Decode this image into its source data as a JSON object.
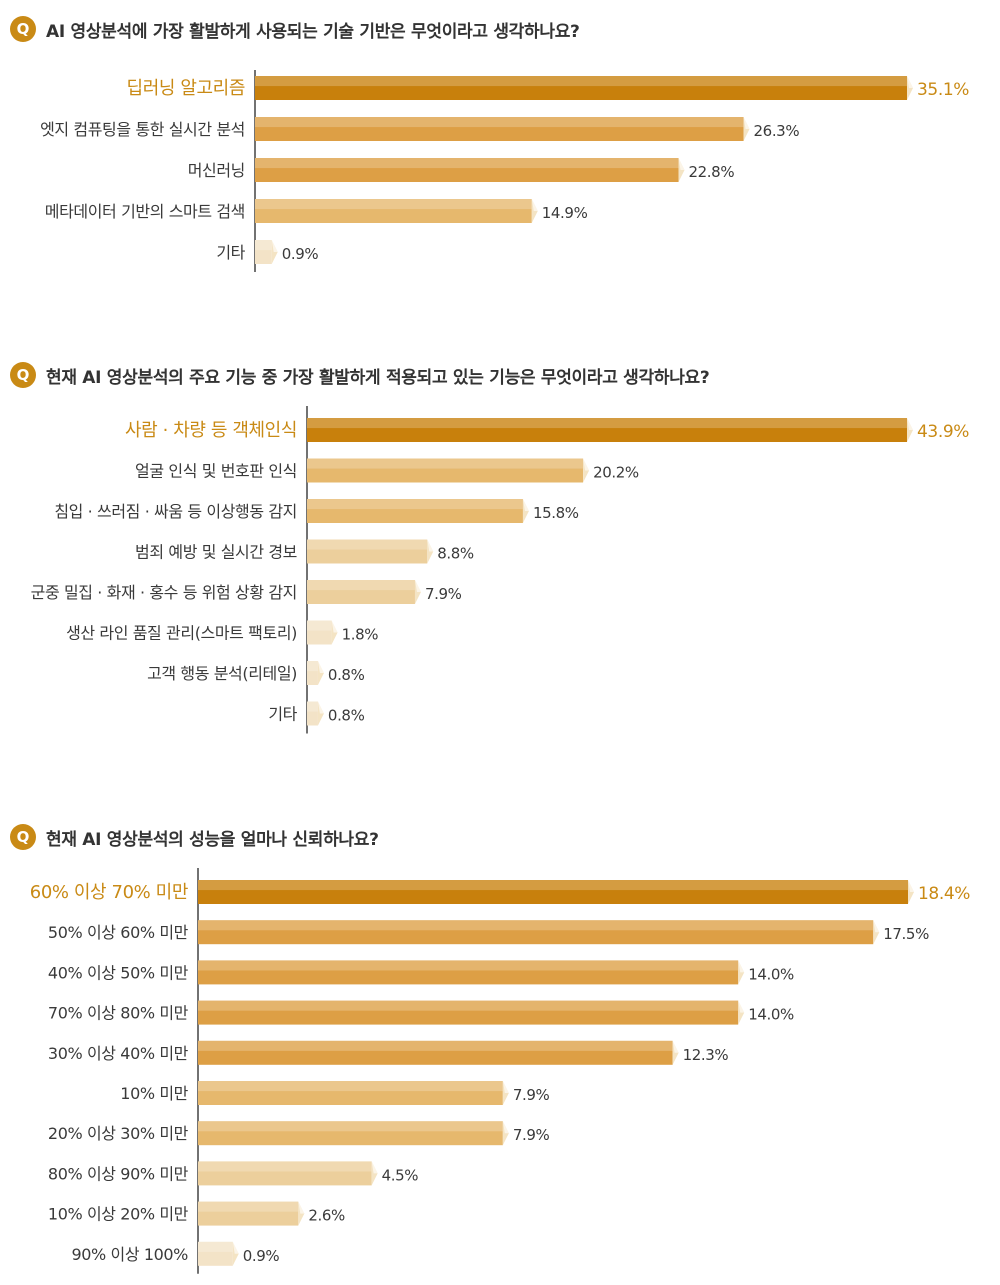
{
  "q_icon": "Q",
  "colors": {
    "accent": "#c98a15",
    "tier1": "#c8800c",
    "tier2": "#dd9f45",
    "tier3": "#e6b86d",
    "tier4": "#eccf9c",
    "tier5": "#f3e3c7",
    "axis": "#444444"
  },
  "chart_data": [
    {
      "type": "bar",
      "orientation": "horizontal",
      "title": "AI 영상분석에 가장 활발하게 사용되는 기술 기반은 무엇이라고 생각하나요?",
      "categories": [
        "딥러닝 알고리즘",
        "엣지 컴퓨팅을 통한 실시간 분석",
        "머신러닝",
        "메타데이터 기반의 스마트 검색",
        "기타"
      ],
      "values": [
        35.1,
        26.3,
        22.8,
        14.9,
        0.9
      ],
      "value_labels": [
        "35.1%",
        "26.3%",
        "22.8%",
        "14.9%",
        "0.9%"
      ],
      "unit": "%"
    },
    {
      "type": "bar",
      "orientation": "horizontal",
      "title": "현재 AI 영상분석의 주요 기능 중 가장 활발하게 적용되고 있는 기능은 무엇이라고 생각하나요?",
      "categories": [
        "사람 · 차량 등 객체인식",
        "얼굴 인식 및 번호판 인식",
        "침입 · 쓰러짐 · 싸움 등 이상행동 감지",
        "범죄 예방 및 실시간 경보",
        "군중 밀집 · 화재 · 홍수 등 위험 상황 감지",
        "생산 라인 품질 관리(스마트 팩토리)",
        "고객 행동 분석(리테일)",
        "기타"
      ],
      "values": [
        43.9,
        20.2,
        15.8,
        8.8,
        7.9,
        1.8,
        0.8,
        0.8
      ],
      "value_labels": [
        "43.9%",
        "20.2%",
        "15.8%",
        "8.8%",
        "7.9%",
        "1.8%",
        "0.8%",
        "0.8%"
      ],
      "unit": "%"
    },
    {
      "type": "bar",
      "orientation": "horizontal",
      "title": "현재 AI 영상분석의 성능을 얼마나 신뢰하나요?",
      "categories": [
        "60% 이상 70% 미만",
        "50% 이상 60% 미만",
        "40% 이상 50% 미만",
        "70% 이상 80% 미만",
        "30% 이상 40% 미만",
        "10% 미만",
        "20% 이상 30% 미만",
        "80% 이상 90% 미만",
        "10% 이상 20% 미만",
        "90% 이상 100%"
      ],
      "values": [
        18.4,
        17.5,
        14.0,
        14.0,
        12.3,
        7.9,
        7.9,
        4.5,
        2.6,
        0.9
      ],
      "value_labels": [
        "18.4%",
        "17.5%",
        "14.0%",
        "14.0%",
        "12.3%",
        "7.9%",
        "7.9%",
        "4.5%",
        "2.6%",
        "0.9%"
      ],
      "unit": "%"
    }
  ]
}
